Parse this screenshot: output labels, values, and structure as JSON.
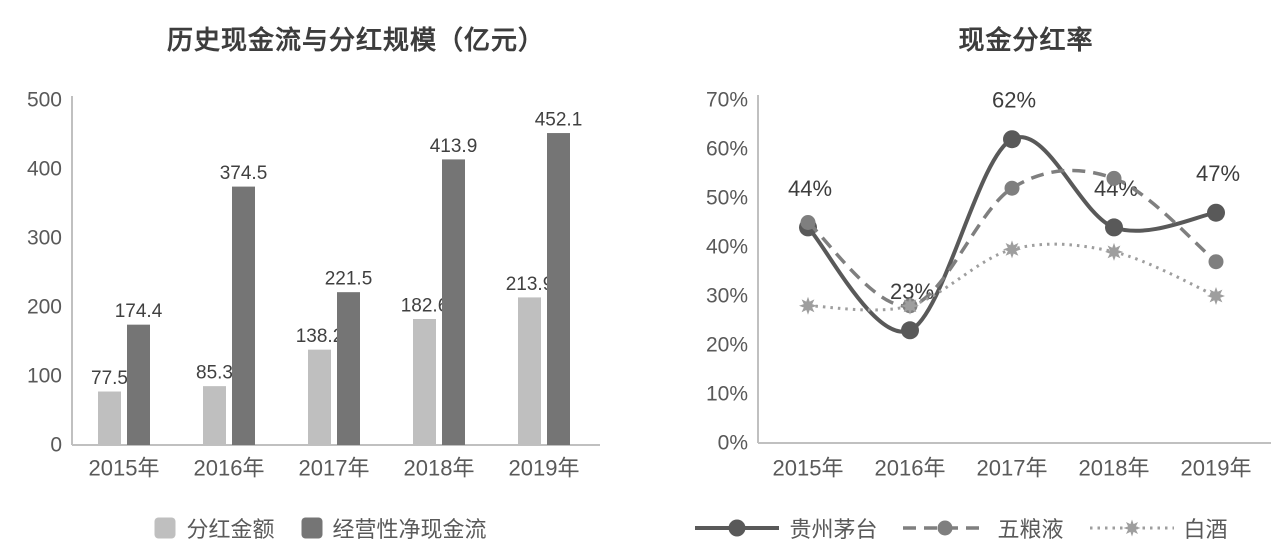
{
  "left_chart": {
    "title": "历史现金流与分红规模（亿元）",
    "legend": [
      {
        "label": "分红金额"
      },
      {
        "label": "经营性净现金流"
      }
    ]
  },
  "right_chart": {
    "title": "现金分红率",
    "legend": [
      {
        "label": "贵州茅台"
      },
      {
        "label": "五粮液"
      },
      {
        "label": "白酒"
      }
    ]
  },
  "chart_data": [
    {
      "type": "bar",
      "title": "历史现金流与分红规模（亿元）",
      "unit": "亿元",
      "categories": [
        "2015年",
        "2016年",
        "2017年",
        "2018年",
        "2019年"
      ],
      "series": [
        {
          "name": "分红金额",
          "color": "#bfbfbf",
          "values": [
            77.5,
            85.3,
            138.2,
            182.6,
            213.9
          ]
        },
        {
          "name": "经营性净现金流",
          "color": "#757575",
          "values": [
            174.4,
            374.5,
            221.5,
            413.9,
            452.1
          ]
        }
      ],
      "ylim": [
        0,
        500
      ],
      "ytick_step": 100,
      "ytick_labels": [
        "0",
        "100",
        "200",
        "300",
        "400",
        "500"
      ],
      "grid": false,
      "data_labels": true,
      "legend_position": "bottom"
    },
    {
      "type": "line",
      "title": "现金分红率",
      "categories": [
        "2015年",
        "2016年",
        "2017年",
        "2018年",
        "2019年"
      ],
      "series": [
        {
          "name": "贵州茅台",
          "color": "#595959",
          "line_style": "solid",
          "marker": "circle",
          "values": [
            44,
            23,
            62,
            44,
            47
          ],
          "point_labels": [
            "44%",
            "23%",
            "62%",
            "44%",
            "47%"
          ]
        },
        {
          "name": "五粮液",
          "color": "#7f7f7f",
          "line_style": "dashed",
          "marker": "circle",
          "values": [
            45,
            28,
            52,
            54,
            37
          ]
        },
        {
          "name": "白酒",
          "color": "#9e9e9e",
          "line_style": "dotted",
          "marker": "star",
          "values": [
            28,
            28,
            39.5,
            39,
            30
          ]
        }
      ],
      "ylim": [
        0,
        70
      ],
      "ytick_step": 10,
      "ytick_format": "percent",
      "ytick_labels": [
        "0%",
        "10%",
        "20%",
        "30%",
        "40%",
        "50%",
        "60%",
        "70%"
      ],
      "grid": false,
      "smoothed": true,
      "legend_position": "bottom"
    }
  ],
  "colors": {
    "title_text": "#3d3d3d",
    "tick_text": "#595959",
    "value_label_text": "#404040",
    "axis_line": "#c0c0c0"
  }
}
